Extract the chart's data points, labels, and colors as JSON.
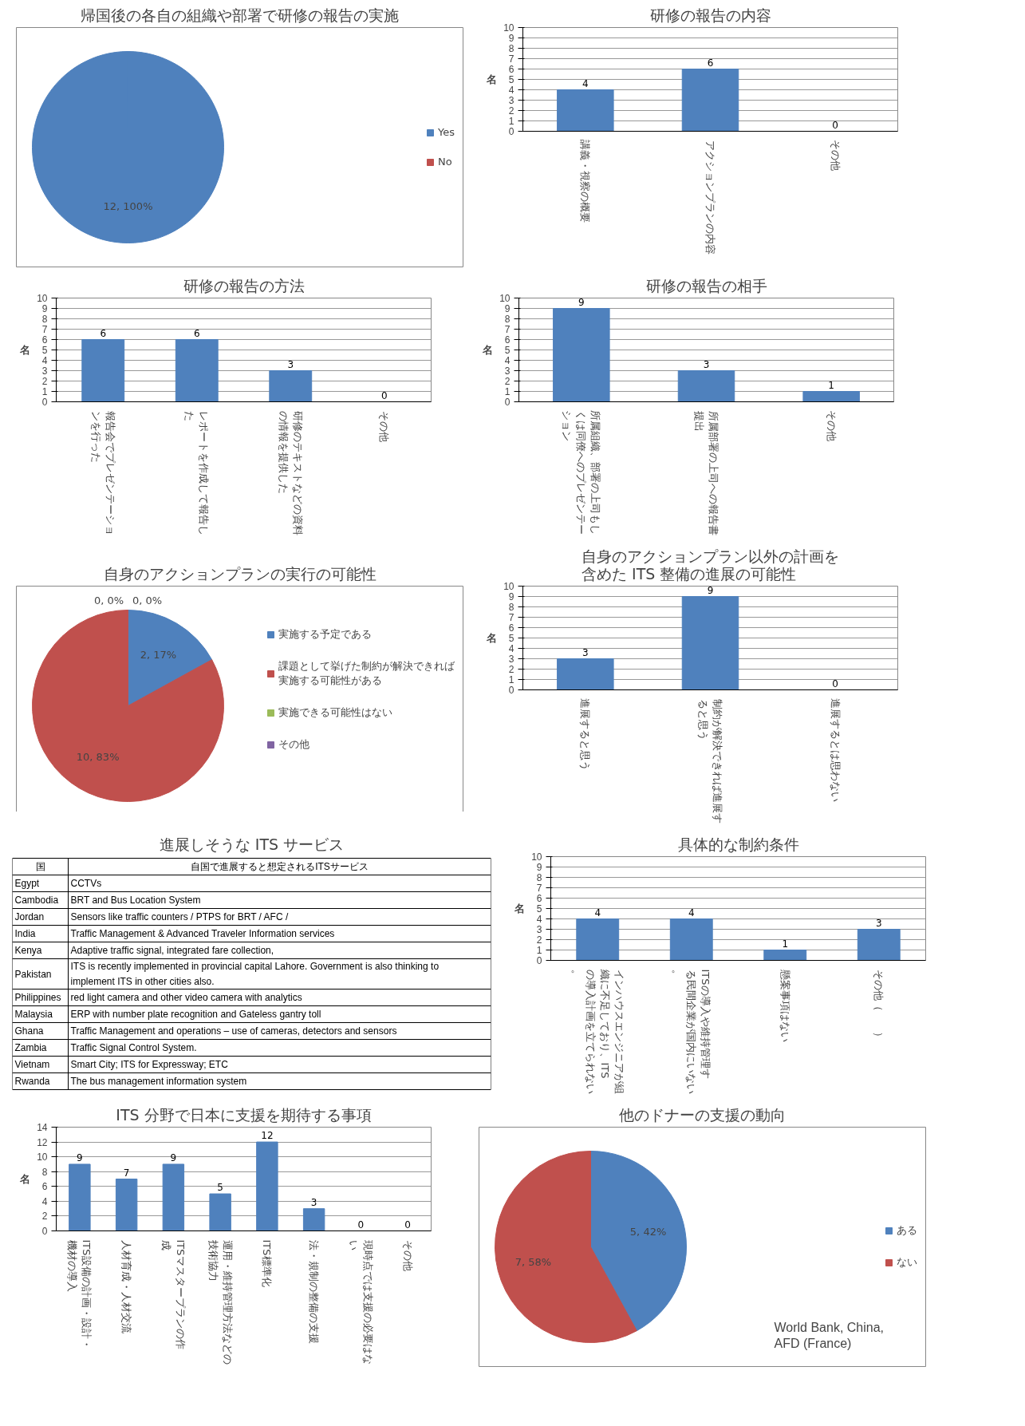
{
  "chart_data": [
    {
      "type": "pie",
      "title": "帰国後の各自の組織や部署で研修の報告の実施",
      "categories": [
        "Yes",
        "No"
      ],
      "values": [
        100,
        0
      ],
      "colors": [
        "#4f81bd",
        "#c0504d"
      ],
      "value_labels": [
        "12, 100%",
        null
      ],
      "legend": "right"
    },
    {
      "type": "bar",
      "title": "研修の報告の内容",
      "ylabel": "名",
      "categories": [
        "講義・視察の概要",
        "アクションプランの内容",
        "その他"
      ],
      "values": [
        4,
        6,
        0
      ],
      "color": "#4f81bd",
      "ylim": [
        0,
        10
      ],
      "yticks": [
        0,
        1,
        2,
        3,
        4,
        5,
        6,
        7,
        8,
        9,
        10
      ],
      "grid": "y",
      "data_labels": true
    },
    {
      "type": "bar",
      "title": "研修の報告の方法",
      "ylabel": "名",
      "categories": [
        "報告会でプレゼンテーションを行った",
        "レポートを作成して報告した",
        "研修のテキストなどの資料の情報を提供した",
        "その他"
      ],
      "values": [
        6,
        6,
        3,
        0
      ],
      "color": "#4f81bd",
      "ylim": [
        0,
        10
      ],
      "yticks": [
        0,
        1,
        2,
        3,
        4,
        5,
        6,
        7,
        8,
        9,
        10
      ],
      "grid": "y",
      "data_labels": true
    },
    {
      "type": "bar",
      "title": "研修の報告の相手",
      "ylabel": "名",
      "categories": [
        "所属組織、部署の上司もしくは同僚へのプレゼンテーション",
        "所属部署の上司への報告書提出",
        "その他"
      ],
      "values": [
        9,
        3,
        1
      ],
      "color": "#4f81bd",
      "ylim": [
        0,
        10
      ],
      "yticks": [
        0,
        1,
        2,
        3,
        4,
        5,
        6,
        7,
        8,
        9,
        10
      ],
      "grid": "y",
      "data_labels": true
    },
    {
      "type": "pie",
      "title": "自身のアクションプランの実行の可能性",
      "categories": [
        "実施する予定である",
        "課題として挙げた制約が解決できれば実施する可能性がある",
        "実施できる可能性はない",
        "その他"
      ],
      "values": [
        17,
        83,
        0,
        0
      ],
      "colors": [
        "#4f81bd",
        "#c0504d",
        "#9bbb59",
        "#8064a2"
      ],
      "value_labels": [
        "2, 17%",
        "10, 83%",
        "0, 0%",
        "0, 0%"
      ],
      "legend": "right"
    },
    {
      "type": "bar",
      "title": "自身のアクションプラン以外の計画を含めた ITS 整備の進展の可能性",
      "ylabel": "名",
      "categories": [
        "進展すると思う",
        "制約が解決できれば進展すると思う",
        "進展するとは思わない"
      ],
      "values": [
        3,
        9,
        0
      ],
      "color": "#4f81bd",
      "ylim": [
        0,
        10
      ],
      "yticks": [
        0,
        1,
        2,
        3,
        4,
        5,
        6,
        7,
        8,
        9,
        10
      ],
      "grid": "y",
      "data_labels": true
    },
    {
      "type": "other",
      "title": "進展しそうな ITS サービス",
      "annotations": [
        "国",
        "自国で進展すると想定されるITSサービス",
        "Egypt",
        "CCTVs",
        "Cambodia",
        "BRT and Bus Location System",
        "Jordan",
        "Sensors like traffic counters / PTPS  for BRT / AFC /",
        "India",
        "Traffic Management & Advanced Traveler Information services",
        "Kenya",
        "Adaptive traffic signal, integrated fare collection,",
        "Pakistan",
        "ITS is recently implemented in provincial capital Lahore. Government is also thinking to implement ITS in other cities also.",
        "Philippines",
        "red light camera and other video camera with analytics",
        "Malaysia",
        "ERP with number plate recognition and Gateless gantry toll",
        "Ghana",
        "Traffic Management and operations – use of cameras, detectors and sensors",
        "Zambia",
        "Traffic Signal Control System.",
        "Vietnam",
        "Smart City; ITS for Expressway; ETC",
        "Rwanda",
        "The bus management information system"
      ]
    },
    {
      "type": "bar",
      "title": "具体的な制約条件",
      "ylabel": "名",
      "categories": [
        "インハウスエンジニアが組織に不足しており、ITSの導入計画を立てられない。",
        "ITSの導入や維持管理する民間企業が国内にいない。",
        "懸案事項はない",
        "その他（　　）"
      ],
      "values": [
        4,
        4,
        1,
        3
      ],
      "color": "#4f81bd",
      "ylim": [
        0,
        10
      ],
      "yticks": [
        0,
        1,
        2,
        3,
        4,
        5,
        6,
        7,
        8,
        9,
        10
      ],
      "grid": "y",
      "data_labels": true
    },
    {
      "type": "bar",
      "title": "ITS 分野で日本に支援を期待する事項",
      "ylabel": "名",
      "categories": [
        "ITS設備の計画・設計・機材の導入",
        "人材育成・人材交流",
        "ITSマスタープランの作成",
        "運用・維持管理方法などの技術協力",
        "ITS標準化",
        "法・規制の整備の支援",
        "現時点では支援の必要はない",
        "その他"
      ],
      "values": [
        9,
        7,
        9,
        5,
        12,
        3,
        0,
        0
      ],
      "color": "#4f81bd",
      "ylim": [
        0,
        14
      ],
      "yticks": [
        0,
        2,
        4,
        6,
        8,
        10,
        12,
        14
      ],
      "grid": "y",
      "data_labels": true
    },
    {
      "type": "pie",
      "title": "他のドナーの支援の動向",
      "categories": [
        "ある",
        "ない"
      ],
      "values": [
        42,
        58
      ],
      "colors": [
        "#4f81bd",
        "#c0504d"
      ],
      "value_labels": [
        "5, 42%",
        "7, 58%"
      ],
      "legend": "right",
      "annotations": [
        "World Bank, China,\nAFD (France)"
      ]
    }
  ]
}
